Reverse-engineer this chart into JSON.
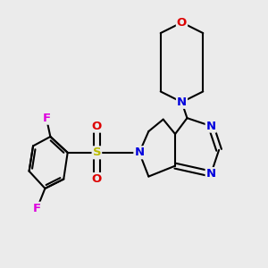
{
  "background_color": "#ebebeb",
  "atom_colors": {
    "N": "#0000dd",
    "O": "#dd0000",
    "S": "#bbbb00",
    "F": "#dd00dd",
    "C": "#000000"
  },
  "figsize": [
    3.0,
    3.0
  ],
  "dpi": 100
}
